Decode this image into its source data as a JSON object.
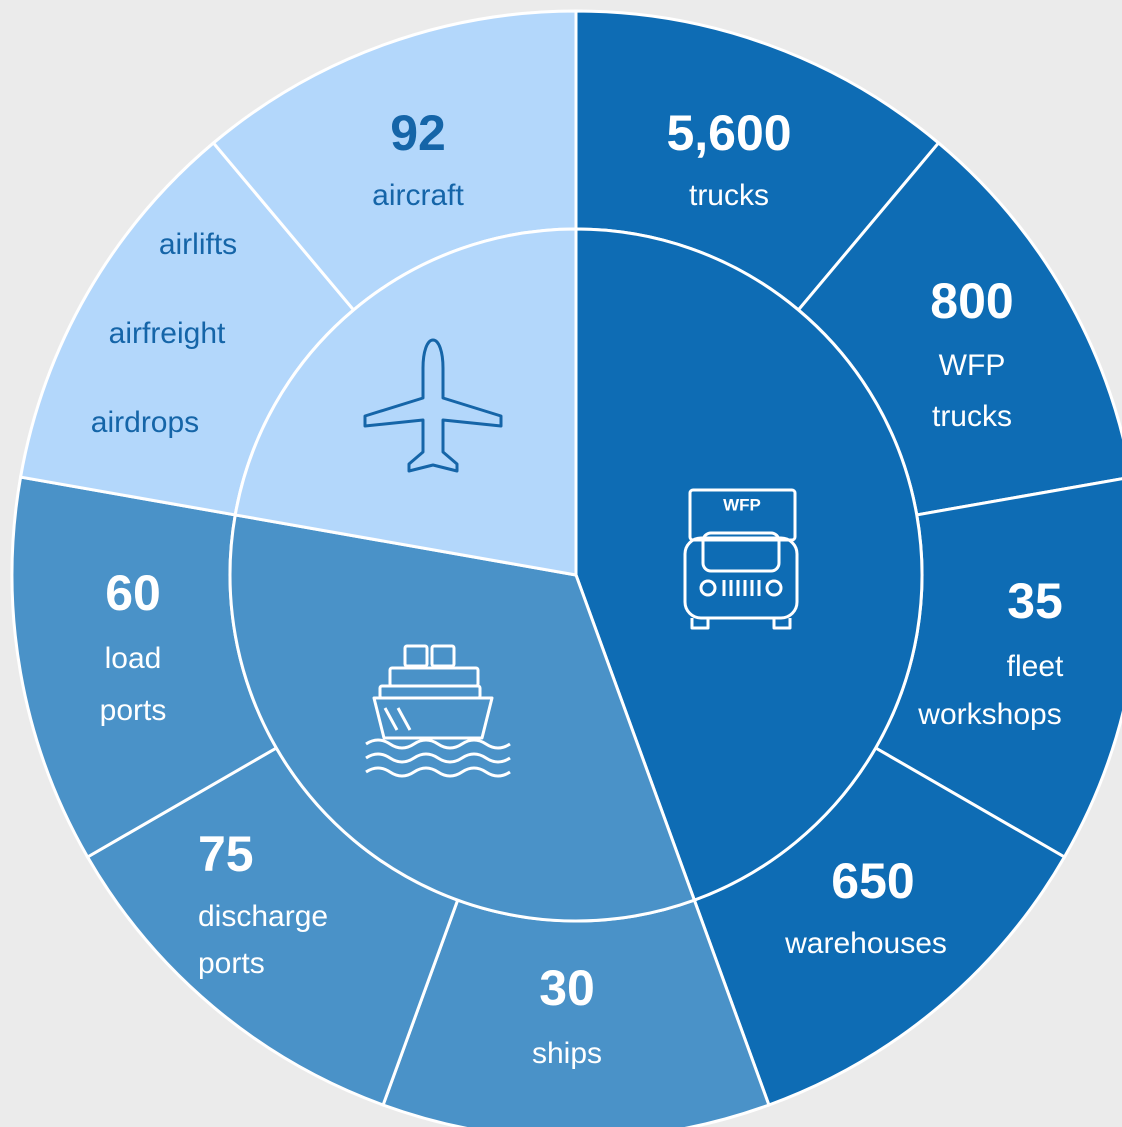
{
  "sections": [
    {
      "segments": [
        {
          "number": "5,600",
          "lines": [
            "trucks"
          ]
        },
        {
          "number": "800",
          "lines": [
            "WFP",
            "trucks"
          ]
        },
        {
          "number": "35",
          "lines": [
            "fleet",
            "workshops"
          ]
        },
        {
          "number": "650",
          "lines": [
            "warehouses"
          ]
        }
      ],
      "icon_label": "WFP"
    },
    {
      "segments": [
        {
          "number": "30",
          "lines": [
            "ships"
          ]
        },
        {
          "number": "75",
          "lines": [
            "discharge",
            "ports"
          ]
        },
        {
          "number": "60",
          "lines": [
            "load",
            "ports"
          ]
        }
      ]
    },
    {
      "segments": [
        {
          "lines": [
            "airlifts",
            "airfreight",
            "airdrops"
          ]
        },
        {
          "number": "92",
          "lines": [
            "aircraft"
          ]
        }
      ]
    }
  ]
}
